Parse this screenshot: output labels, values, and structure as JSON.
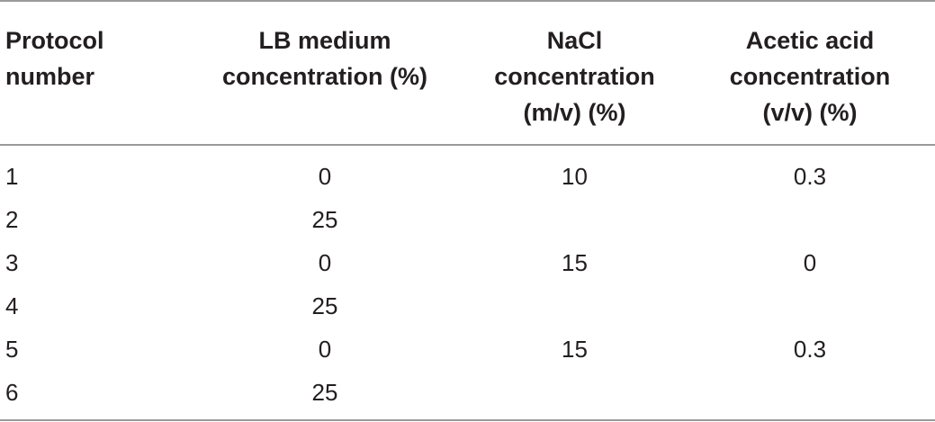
{
  "table": {
    "headers": {
      "protocol": [
        "Protocol",
        "number"
      ],
      "lb": [
        "LB medium",
        "concentration (%)"
      ],
      "nacl": [
        "NaCl",
        "concentration",
        "(m/v) (%)"
      ],
      "acetic": [
        "Acetic acid",
        "concentration",
        "(v/v) (%)"
      ]
    },
    "rows": [
      {
        "protocol": "1",
        "lb": "0",
        "nacl": "10",
        "acetic": "0.3"
      },
      {
        "protocol": "2",
        "lb": "25",
        "nacl": "",
        "acetic": ""
      },
      {
        "protocol": "3",
        "lb": "0",
        "nacl": "15",
        "acetic": "0"
      },
      {
        "protocol": "4",
        "lb": "25",
        "nacl": "",
        "acetic": ""
      },
      {
        "protocol": "5",
        "lb": "0",
        "nacl": "15",
        "acetic": "0.3"
      },
      {
        "protocol": "6",
        "lb": "25",
        "nacl": "",
        "acetic": ""
      }
    ]
  }
}
